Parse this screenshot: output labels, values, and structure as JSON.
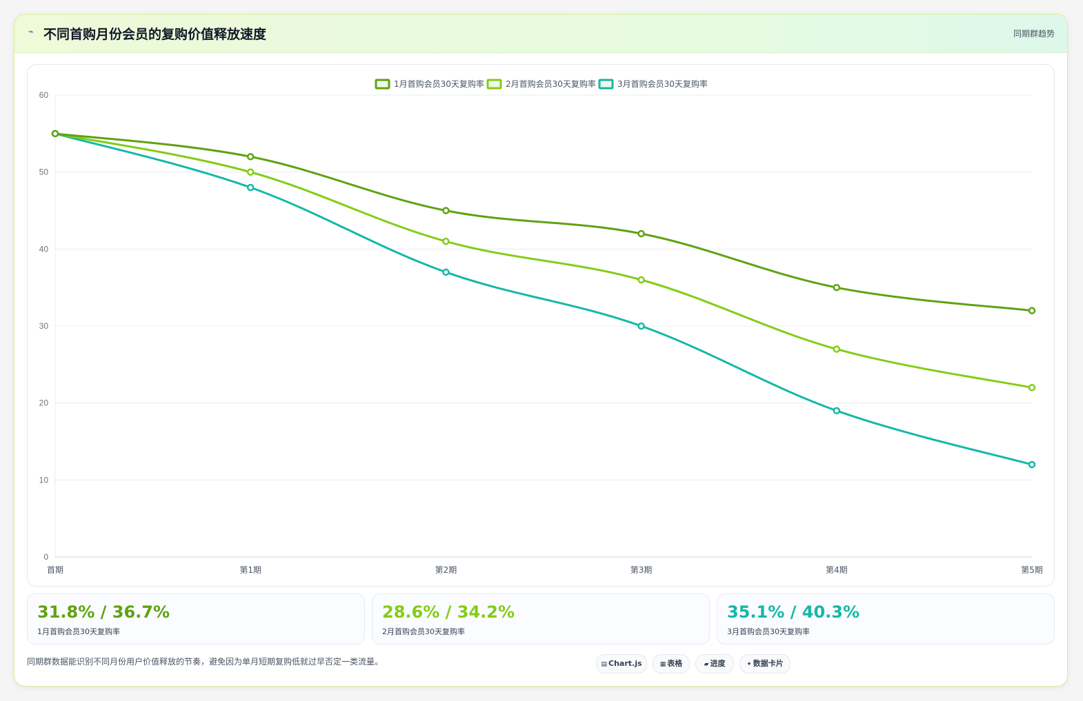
{
  "header": {
    "icon": "lightning-icon",
    "title": "不同首购月份会员的复购价值释放速度",
    "tag": "同期群趋势"
  },
  "chart_data": {
    "type": "line",
    "categories": [
      "首期",
      "第1期",
      "第2期",
      "第3期",
      "第4期",
      "第5期"
    ],
    "series": [
      {
        "name": "1月首购会员30天复购率",
        "color": "#5fa212",
        "values": [
          55,
          52,
          45,
          42,
          35,
          32
        ]
      },
      {
        "name": "2月首购会员30天复购率",
        "color": "#84cc16",
        "values": [
          55,
          50,
          41,
          36,
          27,
          22
        ]
      },
      {
        "name": "3月首购会员30天复购率",
        "color": "#14b8a6",
        "values": [
          55,
          48,
          37,
          30,
          19,
          12
        ]
      }
    ],
    "yticks": [
      0,
      10,
      20,
      30,
      40,
      50,
      60
    ],
    "ylim": [
      0,
      60
    ],
    "grid": true,
    "legend": "top-center"
  },
  "stats": [
    {
      "value": "31.8% / 36.7%",
      "label": "1月首购会员30天复购率",
      "color": "#5fa212"
    },
    {
      "value": "28.6% / 34.2%",
      "label": "2月首购会员30天复购率",
      "color": "#84cc16"
    },
    {
      "value": "35.1% / 40.3%",
      "label": "3月首购会员30天复购率",
      "color": "#14b8a6"
    }
  ],
  "note": "同期群数据能识别不同月份用户价值释放的节奏，避免因为单月短期复购低就过早否定一类流量。",
  "badges": [
    {
      "icon": "▤",
      "label": "Chart.js"
    },
    {
      "icon": "▦",
      "label": "表格"
    },
    {
      "icon": "▰",
      "label": "进度"
    },
    {
      "icon": "✦",
      "label": "数据卡片"
    }
  ]
}
